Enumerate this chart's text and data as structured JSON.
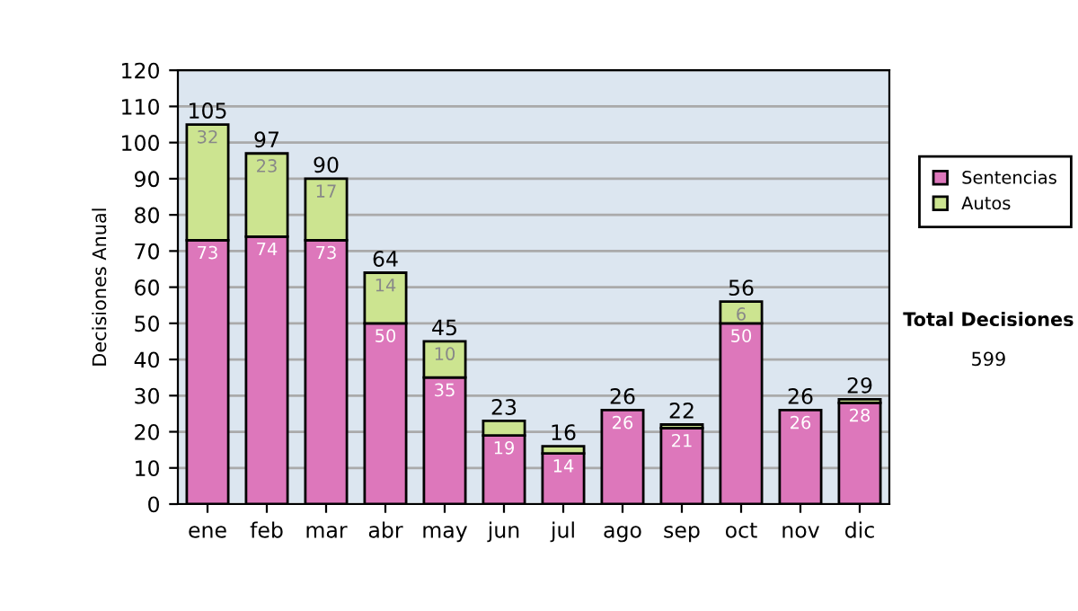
{
  "chart_data": {
    "type": "bar",
    "stacked": true,
    "ylabel": "Decisiones Anual",
    "categories": [
      "ene",
      "feb",
      "mar",
      "abr",
      "may",
      "jun",
      "jul",
      "ago",
      "sep",
      "oct",
      "nov",
      "dic"
    ],
    "series": [
      {
        "name": "Sentencias",
        "color": "#dd77bb",
        "values": [
          73,
          74,
          73,
          50,
          35,
          19,
          14,
          26,
          21,
          50,
          26,
          28
        ],
        "value_labels": [
          "73",
          "74",
          "73",
          "50",
          "35",
          "19",
          "14",
          "26",
          "21",
          "50",
          "26",
          "28"
        ]
      },
      {
        "name": "Autos",
        "color": "#cce490",
        "values": [
          32,
          23,
          17,
          14,
          10,
          4,
          2,
          null,
          1,
          6,
          null,
          1
        ],
        "value_labels": [
          "32",
          "23",
          "17",
          "14",
          "10",
          null,
          null,
          null,
          null,
          "6",
          null,
          null
        ]
      }
    ],
    "totals": [
      "105",
      "97",
      "90",
      "64",
      "45",
      "23",
      "16",
      "26",
      "22",
      "56",
      "26",
      "29"
    ],
    "ylim": [
      0,
      120
    ],
    "yticks": [
      0,
      10,
      20,
      30,
      40,
      50,
      60,
      70,
      80,
      90,
      100,
      110,
      120
    ],
    "grid": "y",
    "legend": "right",
    "annotations": [
      "Total Decisiones",
      "599"
    ]
  }
}
